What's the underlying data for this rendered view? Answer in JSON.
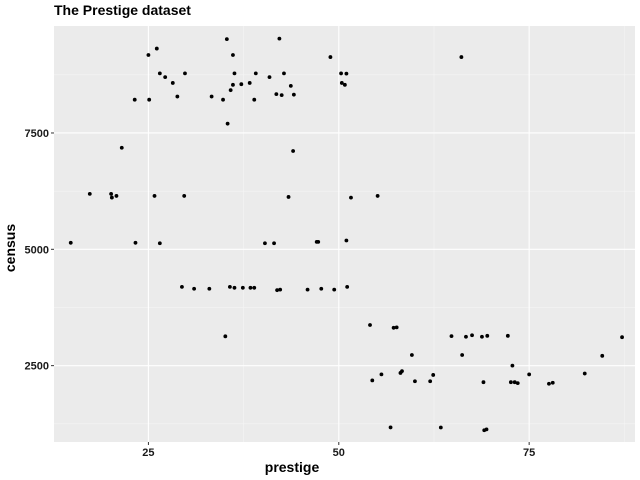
{
  "chart_data": {
    "type": "scatter",
    "title": "The Prestige dataset",
    "xlabel": "prestige",
    "ylabel": "census",
    "xlim": [
      12.6,
      88.9
    ],
    "ylim": [
      859,
      9799
    ],
    "x_ticks": [
      25,
      50,
      75
    ],
    "x_tick_labels": [
      "25",
      "50",
      "75"
    ],
    "y_ticks": [
      2500,
      5000,
      7500
    ],
    "y_tick_labels": [
      "2500",
      "5000",
      "7500"
    ],
    "grid": true,
    "legend": "none",
    "colors": {
      "panel": "#EBEBEB",
      "grid_major": "#FFFFFF",
      "point": "#000000"
    },
    "points": [
      [
        14.8,
        5140
      ],
      [
        17.3,
        6191
      ],
      [
        20.1,
        6191
      ],
      [
        20.2,
        6112
      ],
      [
        20.8,
        6147
      ],
      [
        21.5,
        7182
      ],
      [
        23.2,
        8215
      ],
      [
        23.3,
        5140
      ],
      [
        25.0,
        9175
      ],
      [
        25.1,
        8215
      ],
      [
        25.8,
        6147
      ],
      [
        26.1,
        9314
      ],
      [
        26.5,
        8781
      ],
      [
        26.5,
        5130
      ],
      [
        27.2,
        8700
      ],
      [
        28.2,
        8575
      ],
      [
        28.8,
        8283
      ],
      [
        29.4,
        4193
      ],
      [
        29.7,
        6147
      ],
      [
        29.8,
        8781
      ],
      [
        31.0,
        4153
      ],
      [
        33.0,
        4153
      ],
      [
        33.3,
        8283
      ],
      [
        34.8,
        8215
      ],
      [
        35.1,
        3130
      ],
      [
        35.3,
        9517
      ],
      [
        35.4,
        7700
      ],
      [
        35.7,
        4193
      ],
      [
        35.8,
        8420
      ],
      [
        36.1,
        8535
      ],
      [
        36.1,
        9175
      ],
      [
        36.3,
        8781
      ],
      [
        36.3,
        4173
      ],
      [
        37.2,
        8548
      ],
      [
        37.4,
        4173
      ],
      [
        38.3,
        8575
      ],
      [
        38.4,
        4173
      ],
      [
        38.9,
        8215
      ],
      [
        38.9,
        4173
      ],
      [
        39.1,
        8781
      ],
      [
        40.3,
        5130
      ],
      [
        40.9,
        8700
      ],
      [
        41.5,
        5130
      ],
      [
        41.8,
        8335
      ],
      [
        41.9,
        4122
      ],
      [
        42.2,
        9527
      ],
      [
        42.3,
        4133
      ],
      [
        42.5,
        8313
      ],
      [
        42.8,
        8781
      ],
      [
        43.4,
        6125
      ],
      [
        43.7,
        8512
      ],
      [
        44.0,
        7112
      ],
      [
        44.1,
        8323
      ],
      [
        45.9,
        4133
      ],
      [
        47.1,
        5160
      ],
      [
        47.3,
        5160
      ],
      [
        47.7,
        4153
      ],
      [
        48.9,
        9131
      ],
      [
        49.4,
        4133
      ],
      [
        50.3,
        8780
      ],
      [
        50.4,
        8575
      ],
      [
        50.8,
        8535
      ],
      [
        51.0,
        5190
      ],
      [
        51.0,
        8775
      ],
      [
        51.1,
        4193
      ],
      [
        51.6,
        6111
      ],
      [
        54.1,
        3373
      ],
      [
        54.4,
        2183
      ],
      [
        55.1,
        6147
      ],
      [
        55.6,
        2312
      ],
      [
        56.8,
        1172
      ],
      [
        57.2,
        3313
      ],
      [
        57.6,
        3323
      ],
      [
        58.1,
        2343
      ],
      [
        58.3,
        2381
      ],
      [
        59.6,
        2729
      ],
      [
        60.0,
        2165
      ],
      [
        62.0,
        2165
      ],
      [
        62.4,
        2300
      ],
      [
        63.4,
        1171
      ],
      [
        64.8,
        3135
      ],
      [
        66.1,
        9131
      ],
      [
        66.2,
        2729
      ],
      [
        66.7,
        3121
      ],
      [
        67.5,
        3153
      ],
      [
        68.8,
        3121
      ],
      [
        69.0,
        2144
      ],
      [
        69.1,
        1111
      ],
      [
        69.4,
        1130
      ],
      [
        69.5,
        3141
      ],
      [
        72.2,
        3141
      ],
      [
        72.6,
        2144
      ],
      [
        72.8,
        2500
      ],
      [
        73.1,
        2144
      ],
      [
        73.5,
        2125
      ],
      [
        75.0,
        2311
      ],
      [
        77.6,
        2111
      ],
      [
        78.1,
        2133
      ],
      [
        82.3,
        2330
      ],
      [
        84.6,
        2711
      ],
      [
        87.2,
        3111
      ]
    ]
  }
}
